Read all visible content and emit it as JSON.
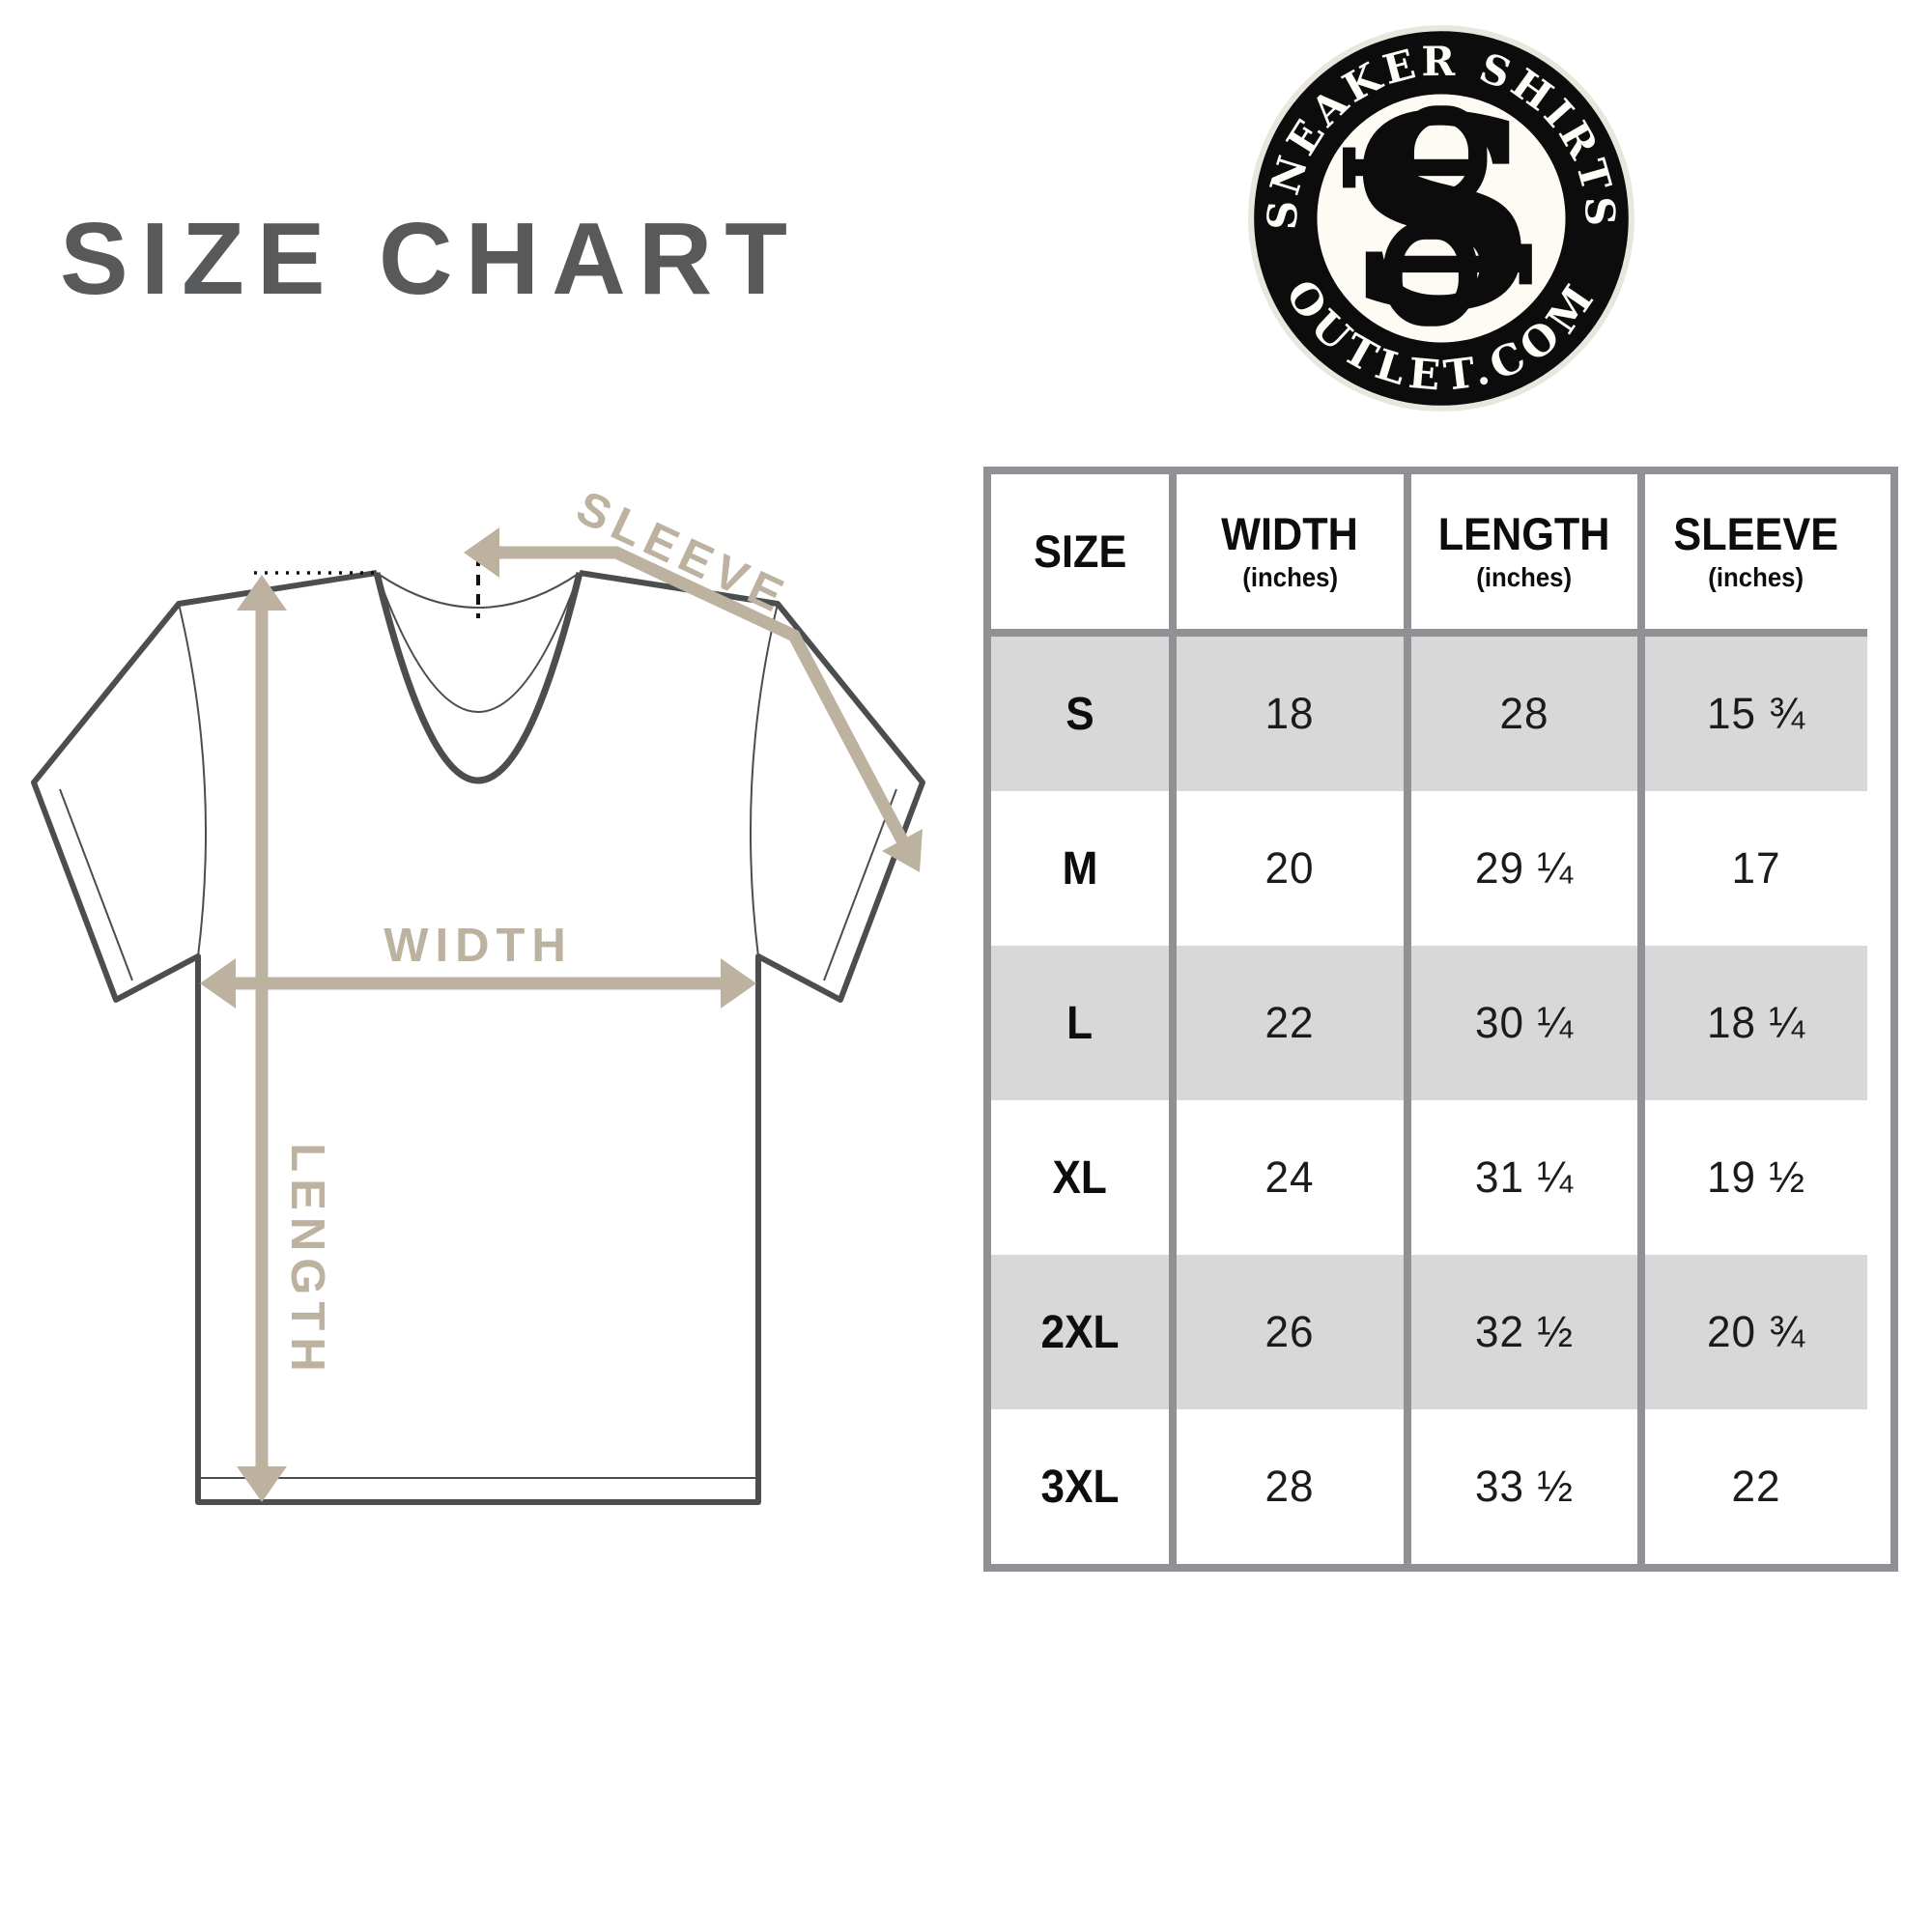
{
  "title": "SIZE CHART",
  "logo": {
    "top_text": "SNEAKER SHIRTS",
    "bottom_text": "OUTLET.COM",
    "monogram": "S"
  },
  "diagram": {
    "labels": {
      "width": "WIDTH",
      "length": "LENGTH",
      "sleeve": "SLEEVE"
    }
  },
  "table": {
    "headers": [
      {
        "label": "SIZE",
        "sub": ""
      },
      {
        "label": "WIDTH",
        "sub": "(inches)"
      },
      {
        "label": "LENGTH",
        "sub": "(inches)"
      },
      {
        "label": "SLEEVE",
        "sub": "(inches)"
      }
    ],
    "rows": [
      {
        "size": "S",
        "width": "18",
        "length": "28",
        "sleeve": "15 ¾",
        "shaded": true
      },
      {
        "size": "M",
        "width": "20",
        "length": "29 ¼",
        "sleeve": "17",
        "shaded": false
      },
      {
        "size": "L",
        "width": "22",
        "length": "30 ¼",
        "sleeve": "18 ¼",
        "shaded": true
      },
      {
        "size": "XL",
        "width": "24",
        "length": "31 ¼",
        "sleeve": "19 ½",
        "shaded": false
      },
      {
        "size": "2XL",
        "width": "26",
        "length": "32 ½",
        "sleeve": "20 ¾",
        "shaded": true
      },
      {
        "size": "3XL",
        "width": "28",
        "length": "33 ½",
        "sleeve": "22",
        "shaded": false
      }
    ]
  },
  "chart_data": {
    "type": "table",
    "columns": [
      "SIZE",
      "WIDTH (inches)",
      "LENGTH (inches)",
      "SLEEVE (inches)"
    ],
    "rows": [
      [
        "S",
        "18",
        "28",
        "15 ¾"
      ],
      [
        "M",
        "20",
        "29 ¼",
        "17"
      ],
      [
        "L",
        "22",
        "30 ¼",
        "18 ¼"
      ],
      [
        "XL",
        "24",
        "31 ¼",
        "19 ½"
      ],
      [
        "2XL",
        "26",
        "32 ½",
        "20 ¾"
      ],
      [
        "3XL",
        "28",
        "33 ½",
        "22"
      ]
    ]
  },
  "colors": {
    "title_gray": "#58595b",
    "outline_gray": "#4c4d4f",
    "arrow_tan": "#bdb1a0",
    "table_border": "#8f9194",
    "row_shade": "#d8d8d8",
    "logo_black": "#0c0c0c",
    "logo_cream": "#fdfbf4"
  }
}
